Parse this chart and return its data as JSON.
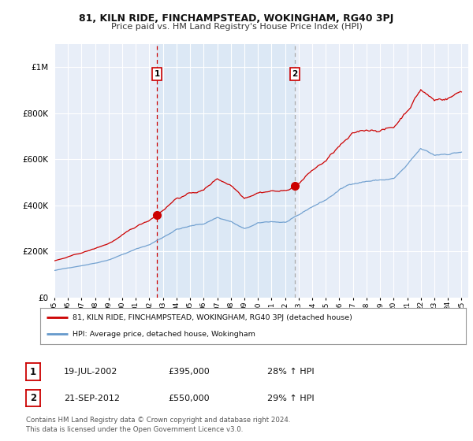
{
  "title": "81, KILN RIDE, FINCHAMPSTEAD, WOKINGHAM, RG40 3PJ",
  "subtitle": "Price paid vs. HM Land Registry's House Price Index (HPI)",
  "background_color": "#ffffff",
  "plot_bg_color": "#e8eef8",
  "highlight_bg_color": "#dce8f5",
  "grid_color": "#ffffff",
  "ylim": [
    0,
    1100000
  ],
  "yticks": [
    0,
    200000,
    400000,
    600000,
    800000,
    1000000
  ],
  "ytick_labels": [
    "£0",
    "£200K",
    "£400K",
    "£600K",
    "£800K",
    "£1M"
  ],
  "sale1": {
    "date_x": 2002.55,
    "price": 395000,
    "label": "1",
    "date_str": "19-JUL-2002",
    "price_str": "£395,000",
    "hpi_str": "28% ↑ HPI"
  },
  "sale2": {
    "date_x": 2012.72,
    "price": 550000,
    "label": "2",
    "date_str": "21-SEP-2012",
    "price_str": "£550,000",
    "hpi_str": "29% ↑ HPI"
  },
  "vline1_color": "#cc0000",
  "vline2_color": "#aaaaaa",
  "marker_color": "#cc0000",
  "hpi_line_color": "#6699cc",
  "price_line_color": "#cc0000",
  "legend_label_price": "81, KILN RIDE, FINCHAMPSTEAD, WOKINGHAM, RG40 3PJ (detached house)",
  "legend_label_hpi": "HPI: Average price, detached house, Wokingham",
  "footer": "Contains HM Land Registry data © Crown copyright and database right 2024.\nThis data is licensed under the Open Government Licence v3.0.",
  "xmin": 1995,
  "xmax": 2025.5
}
